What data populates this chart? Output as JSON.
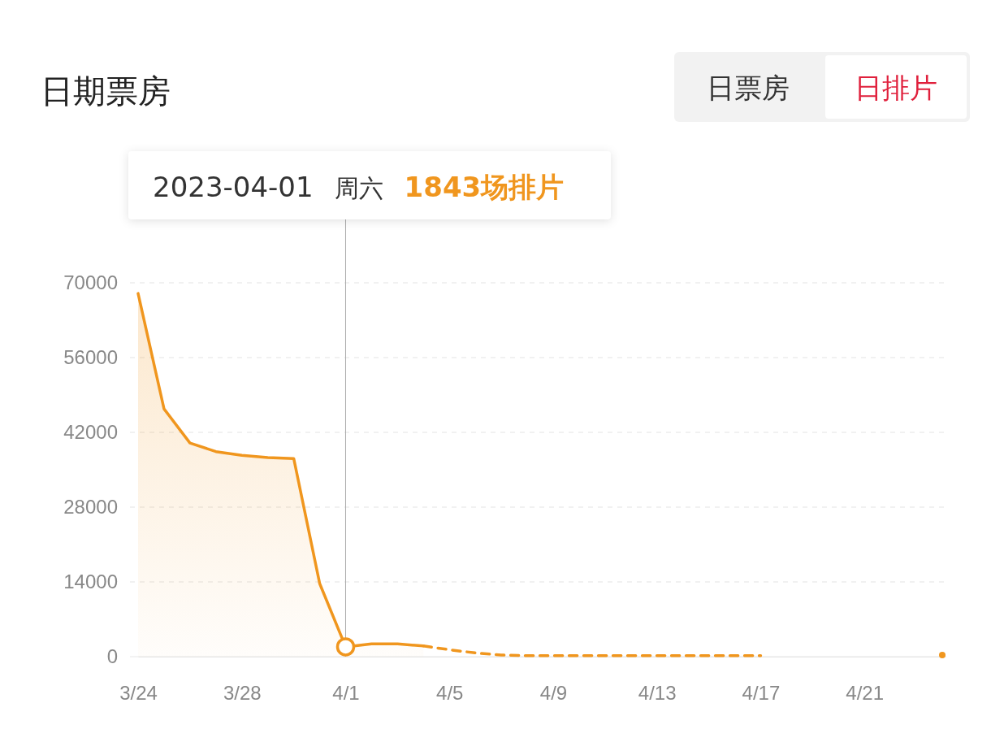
{
  "chart_data": {
    "type": "area",
    "title": "日期票房",
    "x": [
      "--03-24",
      "--03-25",
      "--03-26",
      "--03-27",
      "--03-28",
      "--03-29",
      "--03-30",
      "--03-31",
      "--04-01",
      "--04-02",
      "--04-03",
      "--04-04"
    ],
    "series": [
      {
        "type": "area",
        "color": "#f0961e",
        "line_style": "solid",
        "values": [
          68000,
          46400,
          40000,
          38400,
          37700,
          37300,
          37100,
          13700,
          1843,
          2400,
          2400,
          2000
        ]
      },
      {
        "type": "line",
        "color": "#f0961e",
        "line_style": "dashed",
        "x": [
          "--04-04",
          "--04-05",
          "--04-06",
          "--04-07",
          "--04-08",
          "--04-09",
          "--04-10",
          "--04-11",
          "--04-12",
          "--04-13",
          "--04-14",
          "--04-15",
          "--04-16",
          "--04-17",
          "--04-18",
          "--04-19",
          "--04-20",
          "--04-21",
          "--04-22",
          "--04-23",
          "--04-24"
        ],
        "values": [
          2000,
          1300,
          700,
          300,
          200,
          200,
          200,
          200,
          200,
          200,
          200,
          200,
          200,
          200,
          null,
          null,
          null,
          null,
          null,
          null,
          300
        ]
      }
    ],
    "xlim": [
      "--03-24",
      "--04-24"
    ],
    "xticks": [
      {
        "value": "--03-24",
        "label": "3/24"
      },
      {
        "value": "--03-28",
        "label": "3/28"
      },
      {
        "value": "--04-01",
        "label": "4/1"
      },
      {
        "value": "--04-05",
        "label": "4/5"
      },
      {
        "value": "--04-09",
        "label": "4/9"
      },
      {
        "value": "--04-13",
        "label": "4/13"
      },
      {
        "value": "--04-17",
        "label": "4/17"
      },
      {
        "value": "--04-21",
        "label": "4/21"
      }
    ],
    "ylim": [
      0,
      70000
    ],
    "yticks": [
      0,
      14000,
      28000,
      42000,
      56000,
      70000
    ],
    "grid": "y",
    "ref_lines": [
      {
        "axis": "x",
        "value": "--04-01",
        "label": null,
        "color": "#aaaaaa"
      }
    ],
    "annotations": [
      "2023-04-01 周六 1843场排片",
      "日票房",
      "日排片"
    ]
  }
}
